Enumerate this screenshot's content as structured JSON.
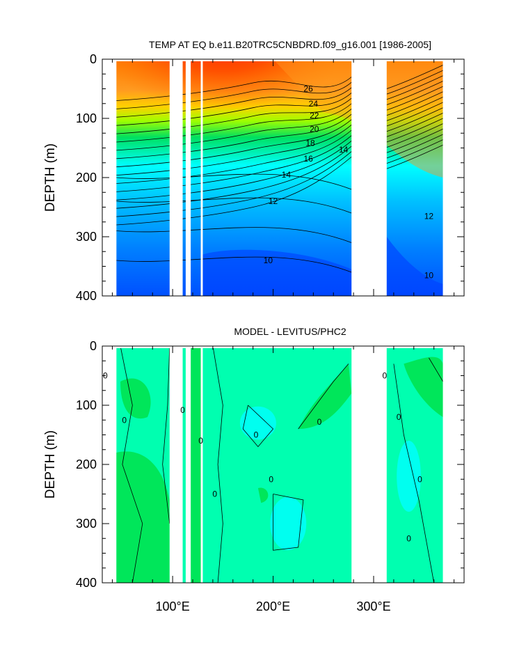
{
  "chart_data": [
    {
      "type": "heatmap",
      "title": "TEMP AT EQ b.e11.B20TRC5CNBDRD.f09_g16.001 [1986-2005]",
      "xlabel": "",
      "ylabel": "DEPTH (m)",
      "xlim": [
        30,
        390
      ],
      "ylim": [
        400,
        0
      ],
      "y_ticks": [
        "0",
        "100",
        "200",
        "300",
        "400"
      ],
      "x_ticks": [
        {
          "value": 100,
          "label": "100°E"
        },
        {
          "value": 200,
          "label": "200°E"
        },
        {
          "value": 300,
          "label": "300°E"
        }
      ],
      "land_gaps_lon": [
        [
          97,
          110
        ],
        [
          113,
          118
        ],
        [
          128,
          130
        ],
        [
          278,
          313
        ],
        [
          369,
          390
        ]
      ],
      "contour_labels": [
        {
          "text": "26",
          "lon": 235,
          "depth": 50
        },
        {
          "text": "24",
          "lon": 240,
          "depth": 75
        },
        {
          "text": "22",
          "lon": 241,
          "depth": 95
        },
        {
          "text": "20",
          "lon": 241,
          "depth": 118
        },
        {
          "text": "18",
          "lon": 237,
          "depth": 142
        },
        {
          "text": "16",
          "lon": 235,
          "depth": 168
        },
        {
          "text": "14",
          "lon": 213,
          "depth": 195
        },
        {
          "text": "14",
          "lon": 270,
          "depth": 153
        },
        {
          "text": "12",
          "lon": 200,
          "depth": 240
        },
        {
          "text": "12",
          "lon": 355,
          "depth": 265
        },
        {
          "text": "10",
          "lon": 195,
          "depth": 340
        },
        {
          "text": "10",
          "lon": 355,
          "depth": 365
        }
      ],
      "colors": {
        "hot": "#ff1a00",
        "warm": "#ff7a00",
        "yellow": "#ffee00",
        "green": "#00e000",
        "cyan": "#00ffff",
        "blue": "#0080ff",
        "deep": "#0030ff",
        "violet": "#8000ff"
      }
    },
    {
      "type": "heatmap",
      "title": "MODEL - LEVITUS/PHC2",
      "xlabel": "",
      "ylabel": "DEPTH (m)",
      "xlim": [
        30,
        390
      ],
      "ylim": [
        400,
        0
      ],
      "y_ticks": [
        "0",
        "100",
        "200",
        "300",
        "400"
      ],
      "x_ticks": [
        {
          "value": 100,
          "label": "100°E"
        },
        {
          "value": 200,
          "label": "200°E"
        },
        {
          "value": 300,
          "label": "300°E"
        }
      ],
      "land_gaps_lon": [
        [
          97,
          110
        ],
        [
          113,
          118
        ],
        [
          128,
          130
        ],
        [
          278,
          313
        ],
        [
          369,
          390
        ]
      ],
      "contour_labels": [
        {
          "text": "0",
          "lon": 33,
          "depth": 50
        },
        {
          "text": "0",
          "lon": 52,
          "depth": 125
        },
        {
          "text": "0",
          "lon": 110,
          "depth": 108
        },
        {
          "text": "0",
          "lon": 128,
          "depth": 160
        },
        {
          "text": "0",
          "lon": 142,
          "depth": 250
        },
        {
          "text": "0",
          "lon": 183,
          "depth": 150
        },
        {
          "text": "0",
          "lon": 198,
          "depth": 225
        },
        {
          "text": "0",
          "lon": 246,
          "depth": 128
        },
        {
          "text": "0",
          "lon": 325,
          "depth": 120
        },
        {
          "text": "0",
          "lon": 346,
          "depth": 225
        },
        {
          "text": "0",
          "lon": 335,
          "depth": 325
        },
        {
          "text": "0",
          "lon": 311,
          "depth": 50
        }
      ],
      "colors": {
        "pos": "#00e65a",
        "zero": "#00ffb0",
        "neg": "#00ffd8",
        "strong_neg": "#00fff0"
      }
    }
  ]
}
